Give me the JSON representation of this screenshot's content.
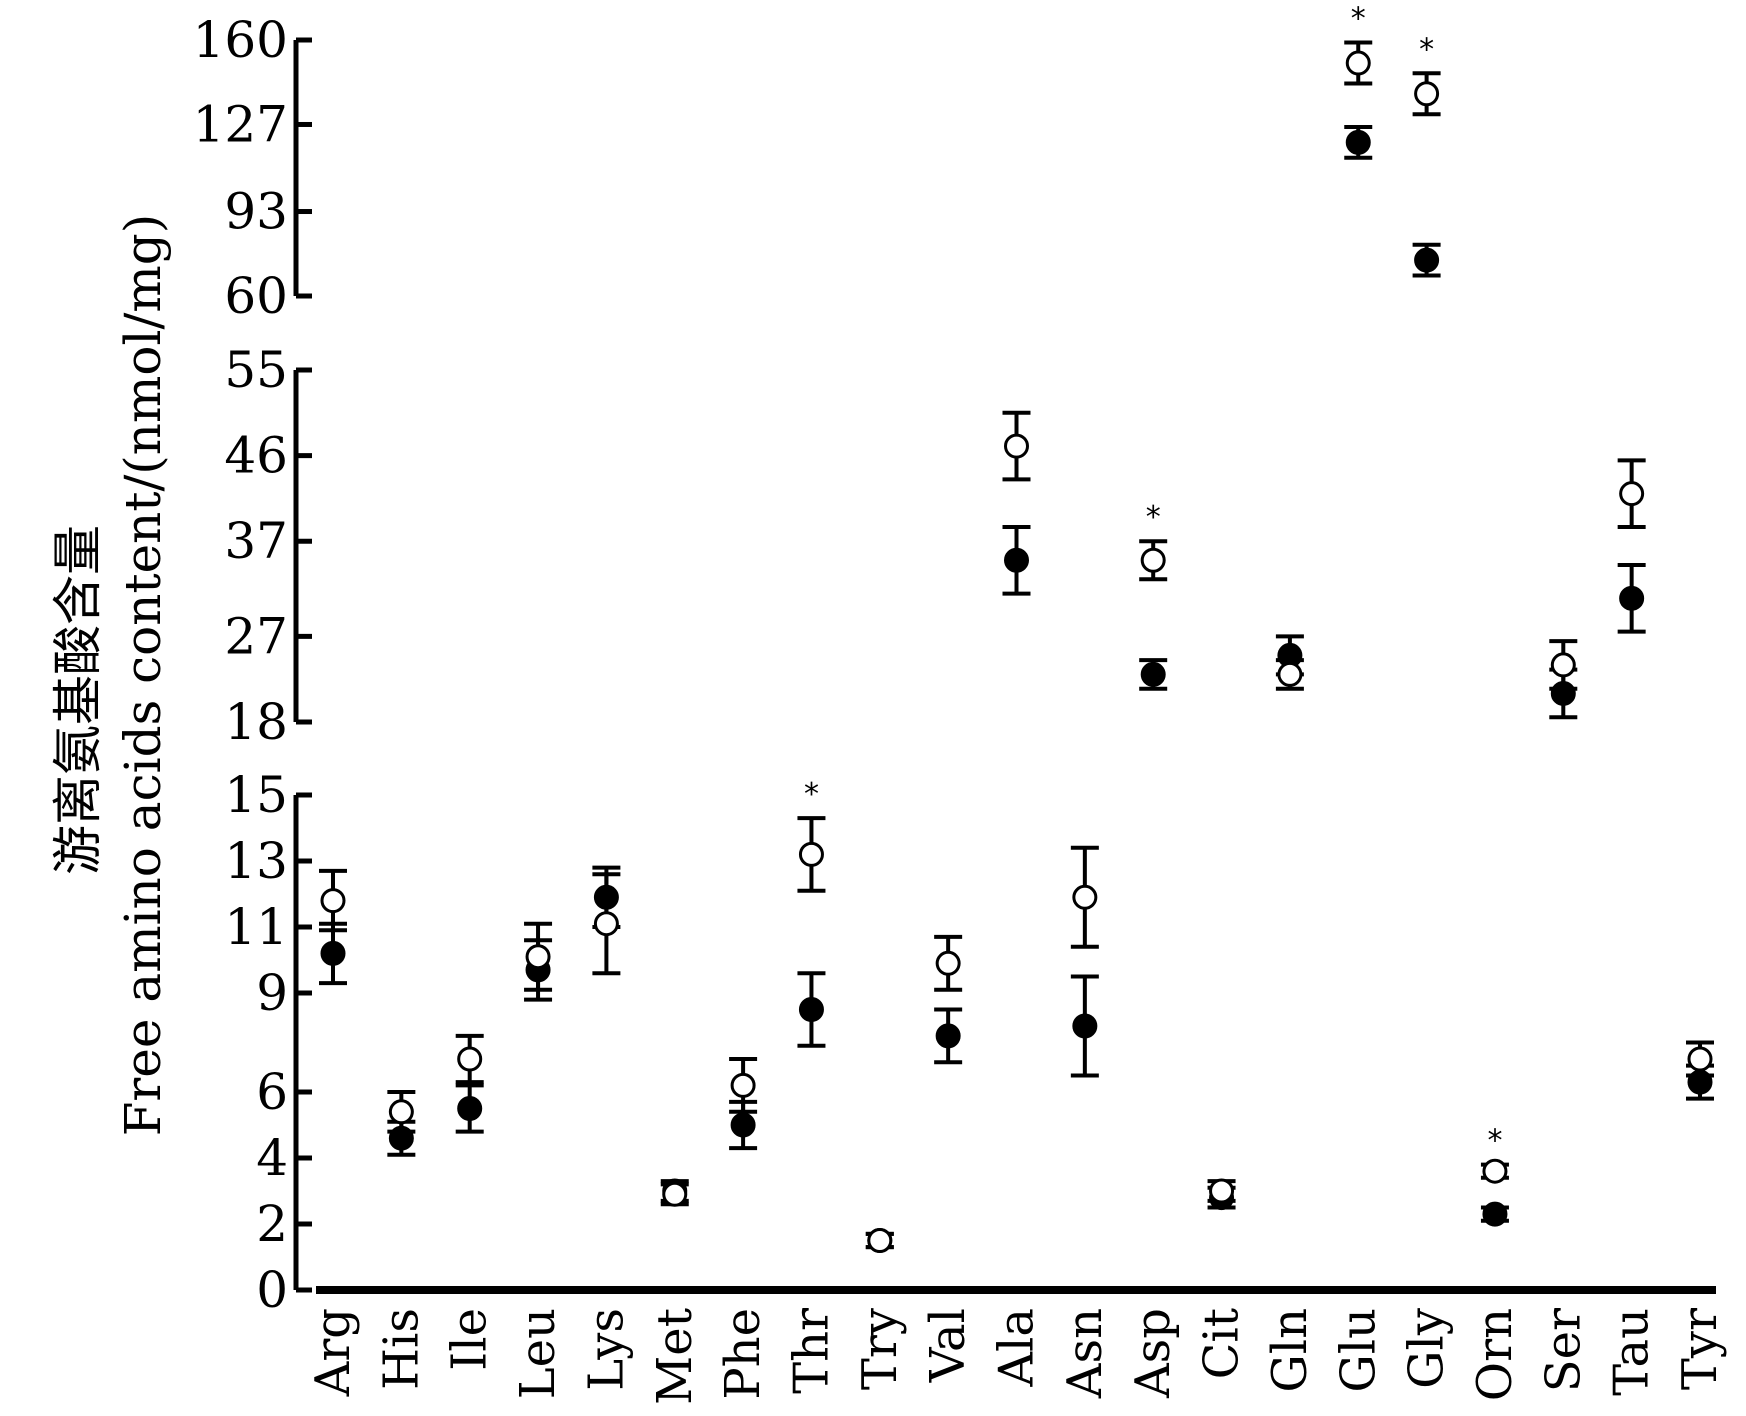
{
  "chart_data": {
    "type": "scatter",
    "ylabel_cn": "游离氨基酸含量",
    "ylabel_en": "Free amino acids content/(nmol/mg)",
    "categories": [
      "Arg",
      "His",
      "Ile",
      "Leu",
      "Lys",
      "Met",
      "Phe",
      "Thr",
      "Try",
      "Val",
      "Ala",
      "Asn",
      "Asp",
      "Cit",
      "Gln",
      "Glu",
      "Gly",
      "Orn",
      "Ser",
      "Tau",
      "Tyr"
    ],
    "y_axis_segments": [
      {
        "ticks": [
          0,
          2,
          4,
          6,
          9,
          11,
          13,
          15
        ],
        "range": [
          0,
          15
        ]
      },
      {
        "ticks": [
          18,
          27,
          37,
          46,
          55
        ],
        "range": [
          18,
          55
        ]
      },
      {
        "ticks": [
          60,
          93,
          127,
          160
        ],
        "range": [
          60,
          160
        ]
      }
    ],
    "series": [
      {
        "marker": "open-circle",
        "values": [
          11.8,
          5.4,
          7.0,
          10.1,
          11.1,
          2.9,
          6.2,
          13.2,
          1.5,
          9.9,
          47.0,
          11.9,
          35.0,
          3.0,
          23.0,
          151.0,
          139.0,
          3.6,
          24.0,
          42.0,
          7.0
        ],
        "errors": [
          0.9,
          0.6,
          0.7,
          1.0,
          1.5,
          0.3,
          0.8,
          1.1,
          0.2,
          0.8,
          3.5,
          1.5,
          2.0,
          0.3,
          1.5,
          8.0,
          8.0,
          0.2,
          2.5,
          3.5,
          0.5
        ]
      },
      {
        "marker": "filled-circle",
        "values": [
          10.2,
          4.6,
          5.5,
          9.7,
          11.9,
          3.0,
          5.0,
          8.5,
          1.5,
          7.7,
          35.0,
          8.0,
          23.0,
          2.8,
          25.0,
          120.0,
          74.0,
          2.3,
          21.0,
          31.0,
          6.3
        ],
        "errors": [
          0.9,
          0.5,
          0.7,
          0.9,
          0.9,
          0.3,
          0.7,
          1.1,
          0.2,
          0.8,
          3.5,
          1.5,
          1.5,
          0.3,
          2.0,
          6.0,
          6.0,
          0.2,
          2.5,
          3.5,
          0.5
        ]
      }
    ],
    "significant": [
      "Thr",
      "Asp",
      "Glu",
      "Gly",
      "Orn"
    ],
    "significance_mark": "*"
  }
}
